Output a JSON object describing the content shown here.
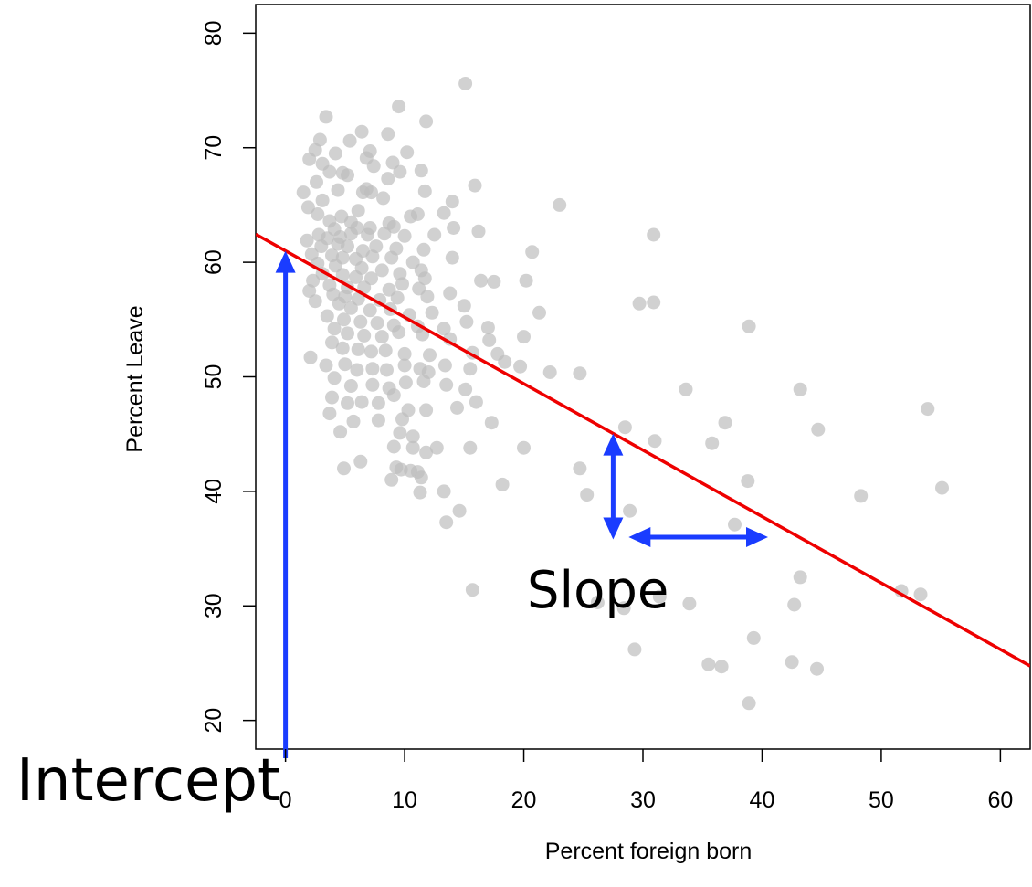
{
  "chart_data": {
    "type": "scatter",
    "title": "",
    "xlabel": "Percent foreign born",
    "ylabel": "Percent Leave",
    "xlim": [
      -2.5,
      62.5
    ],
    "ylim": [
      17.5,
      82.5
    ],
    "x_ticks": [
      0,
      10,
      20,
      30,
      40,
      50,
      60
    ],
    "y_ticks": [
      20,
      30,
      40,
      50,
      60,
      70,
      80
    ],
    "grid": false,
    "point_color": "#bdbdbd",
    "line_color": "#ee0000",
    "arrow_color": "#1a3cff",
    "regression_line": {
      "intercept": 61.0,
      "slope": -0.58
    },
    "annotations": {
      "slope": "Slope",
      "intercept": "Intercept"
    },
    "points": [
      [
        15.1,
        75.6
      ],
      [
        9.5,
        73.6
      ],
      [
        3.4,
        72.7
      ],
      [
        11.8,
        72.3
      ],
      [
        6.4,
        71.4
      ],
      [
        8.6,
        71.2
      ],
      [
        2.9,
        70.7
      ],
      [
        5.4,
        70.6
      ],
      [
        2.5,
        69.8
      ],
      [
        7.1,
        69.7
      ],
      [
        10.2,
        69.6
      ],
      [
        6.8,
        69.1
      ],
      [
        4.2,
        69.5
      ],
      [
        2.0,
        69.0
      ],
      [
        3.1,
        68.6
      ],
      [
        9.0,
        68.7
      ],
      [
        7.4,
        68.4
      ],
      [
        11.4,
        68.0
      ],
      [
        3.7,
        67.9
      ],
      [
        4.8,
        67.8
      ],
      [
        5.2,
        67.6
      ],
      [
        9.6,
        67.9
      ],
      [
        8.6,
        67.3
      ],
      [
        2.6,
        67.0
      ],
      [
        6.8,
        66.4
      ],
      [
        15.9,
        66.7
      ],
      [
        1.5,
        66.1
      ],
      [
        4.4,
        66.3
      ],
      [
        6.5,
        66.1
      ],
      [
        7.2,
        66.1
      ],
      [
        11.7,
        66.2
      ],
      [
        3.1,
        65.4
      ],
      [
        8.2,
        65.6
      ],
      [
        14.0,
        65.3
      ],
      [
        23.0,
        65.0
      ],
      [
        1.9,
        64.8
      ],
      [
        6.1,
        64.5
      ],
      [
        2.7,
        64.2
      ],
      [
        4.7,
        64.0
      ],
      [
        10.5,
        64.0
      ],
      [
        11.1,
        64.2
      ],
      [
        13.3,
        64.3
      ],
      [
        3.7,
        63.6
      ],
      [
        5.5,
        63.5
      ],
      [
        8.7,
        63.4
      ],
      [
        4.1,
        62.9
      ],
      [
        6.0,
        63.0
      ],
      [
        7.1,
        63.0
      ],
      [
        9.1,
        63.1
      ],
      [
        14.1,
        63.0
      ],
      [
        2.8,
        62.4
      ],
      [
        3.5,
        62.1
      ],
      [
        4.6,
        62.2
      ],
      [
        5.5,
        62.5
      ],
      [
        6.9,
        62.4
      ],
      [
        8.3,
        62.5
      ],
      [
        10.0,
        62.3
      ],
      [
        12.5,
        62.4
      ],
      [
        16.2,
        62.7
      ],
      [
        30.9,
        62.4
      ],
      [
        1.8,
        61.9
      ],
      [
        3.0,
        61.4
      ],
      [
        4.4,
        61.6
      ],
      [
        5.2,
        61.4
      ],
      [
        6.5,
        61.0
      ],
      [
        7.6,
        61.4
      ],
      [
        9.3,
        61.2
      ],
      [
        11.6,
        61.1
      ],
      [
        20.7,
        60.9
      ],
      [
        2.2,
        60.7
      ],
      [
        3.9,
        60.6
      ],
      [
        4.8,
        60.4
      ],
      [
        5.9,
        60.3
      ],
      [
        7.3,
        60.5
      ],
      [
        8.9,
        60.4
      ],
      [
        10.7,
        60.0
      ],
      [
        14.0,
        60.4
      ],
      [
        2.7,
        59.9
      ],
      [
        4.2,
        59.7
      ],
      [
        6.4,
        59.5
      ],
      [
        8.1,
        59.3
      ],
      [
        9.6,
        59.0
      ],
      [
        11.4,
        59.3
      ],
      [
        3.1,
        59.0
      ],
      [
        4.8,
        58.9
      ],
      [
        5.9,
        58.7
      ],
      [
        7.2,
        58.6
      ],
      [
        9.8,
        58.1
      ],
      [
        11.7,
        58.6
      ],
      [
        16.4,
        58.4
      ],
      [
        17.5,
        58.3
      ],
      [
        20.2,
        58.4
      ],
      [
        2.3,
        58.4
      ],
      [
        3.7,
        58.0
      ],
      [
        5.2,
        57.8
      ],
      [
        6.6,
        57.8
      ],
      [
        8.7,
        57.6
      ],
      [
        11.2,
        57.7
      ],
      [
        2.0,
        57.5
      ],
      [
        4.0,
        57.2
      ],
      [
        5.0,
        57.0
      ],
      [
        6.1,
        56.8
      ],
      [
        7.9,
        56.7
      ],
      [
        9.4,
        56.9
      ],
      [
        11.9,
        57.0
      ],
      [
        13.8,
        57.3
      ],
      [
        30.9,
        56.5
      ],
      [
        29.7,
        56.4
      ],
      [
        2.5,
        56.6
      ],
      [
        4.5,
        56.4
      ],
      [
        5.5,
        56.0
      ],
      [
        7.1,
        55.8
      ],
      [
        8.8,
        55.9
      ],
      [
        10.4,
        55.4
      ],
      [
        12.3,
        55.6
      ],
      [
        15.0,
        56.2
      ],
      [
        21.3,
        55.6
      ],
      [
        3.5,
        55.3
      ],
      [
        4.9,
        55.0
      ],
      [
        6.3,
        54.8
      ],
      [
        7.7,
        54.7
      ],
      [
        9.1,
        54.5
      ],
      [
        11.1,
        54.4
      ],
      [
        13.3,
        54.2
      ],
      [
        15.2,
        54.8
      ],
      [
        17.0,
        54.3
      ],
      [
        4.1,
        54.2
      ],
      [
        5.2,
        53.8
      ],
      [
        6.6,
        53.6
      ],
      [
        8.1,
        53.5
      ],
      [
        9.5,
        53.9
      ],
      [
        11.5,
        53.7
      ],
      [
        13.8,
        53.3
      ],
      [
        17.1,
        53.2
      ],
      [
        20.0,
        53.5
      ],
      [
        38.9,
        54.4
      ],
      [
        2.1,
        51.7
      ],
      [
        3.9,
        53.0
      ],
      [
        4.8,
        52.5
      ],
      [
        6.1,
        52.4
      ],
      [
        7.2,
        52.2
      ],
      [
        8.4,
        52.3
      ],
      [
        10.0,
        52.0
      ],
      [
        12.1,
        51.9
      ],
      [
        15.7,
        52.1
      ],
      [
        17.8,
        52.0
      ],
      [
        3.4,
        51.0
      ],
      [
        5.0,
        51.1
      ],
      [
        6.0,
        50.6
      ],
      [
        7.3,
        50.7
      ],
      [
        8.5,
        50.6
      ],
      [
        10.0,
        51.0
      ],
      [
        11.3,
        50.7
      ],
      [
        12.0,
        50.4
      ],
      [
        13.4,
        51.0
      ],
      [
        15.5,
        50.7
      ],
      [
        18.4,
        51.3
      ],
      [
        19.7,
        50.9
      ],
      [
        22.2,
        50.4
      ],
      [
        24.7,
        50.3
      ],
      [
        4.1,
        49.9
      ],
      [
        5.5,
        49.2
      ],
      [
        7.3,
        49.3
      ],
      [
        8.7,
        49.0
      ],
      [
        10.1,
        49.5
      ],
      [
        11.6,
        49.6
      ],
      [
        13.5,
        49.3
      ],
      [
        15.1,
        48.9
      ],
      [
        33.6,
        48.9
      ],
      [
        43.2,
        48.9
      ],
      [
        3.9,
        48.2
      ],
      [
        5.2,
        47.7
      ],
      [
        6.4,
        47.8
      ],
      [
        7.8,
        47.7
      ],
      [
        9.1,
        48.4
      ],
      [
        10.3,
        47.1
      ],
      [
        11.8,
        47.1
      ],
      [
        14.4,
        47.3
      ],
      [
        16.0,
        47.8
      ],
      [
        53.9,
        47.2
      ],
      [
        3.7,
        46.8
      ],
      [
        5.7,
        46.1
      ],
      [
        7.8,
        46.2
      ],
      [
        9.8,
        46.3
      ],
      [
        17.3,
        46.0
      ],
      [
        36.9,
        46.0
      ],
      [
        4.6,
        45.2
      ],
      [
        9.6,
        45.1
      ],
      [
        10.7,
        44.8
      ],
      [
        28.5,
        45.6
      ],
      [
        44.7,
        45.4
      ],
      [
        9.1,
        43.9
      ],
      [
        10.7,
        43.8
      ],
      [
        11.8,
        43.4
      ],
      [
        12.7,
        43.8
      ],
      [
        15.5,
        43.8
      ],
      [
        20.0,
        43.8
      ],
      [
        31.0,
        44.4
      ],
      [
        35.8,
        44.2
      ],
      [
        6.3,
        42.6
      ],
      [
        4.9,
        42.0
      ],
      [
        9.3,
        42.1
      ],
      [
        9.7,
        41.9
      ],
      [
        10.5,
        41.8
      ],
      [
        11.1,
        41.7
      ],
      [
        24.7,
        42.0
      ],
      [
        8.9,
        41.0
      ],
      [
        11.4,
        41.2
      ],
      [
        38.8,
        40.9
      ],
      [
        11.3,
        39.9
      ],
      [
        13.3,
        40.0
      ],
      [
        18.2,
        40.6
      ],
      [
        25.3,
        39.7
      ],
      [
        48.3,
        39.6
      ],
      [
        55.1,
        40.3
      ],
      [
        28.9,
        38.3
      ],
      [
        14.6,
        38.3
      ],
      [
        13.5,
        37.3
      ],
      [
        37.7,
        37.1
      ],
      [
        15.7,
        31.4
      ],
      [
        26.2,
        30.3
      ],
      [
        31.4,
        30.8
      ],
      [
        51.7,
        31.3
      ],
      [
        53.3,
        31.0
      ],
      [
        33.9,
        30.2
      ],
      [
        28.4,
        29.8
      ],
      [
        43.2,
        32.5
      ],
      [
        42.7,
        30.1
      ],
      [
        29.3,
        26.2
      ],
      [
        39.3,
        27.2
      ],
      [
        35.5,
        24.9
      ],
      [
        36.6,
        24.7
      ],
      [
        42.5,
        25.1
      ],
      [
        44.6,
        24.5
      ],
      [
        38.9,
        21.5
      ]
    ]
  }
}
